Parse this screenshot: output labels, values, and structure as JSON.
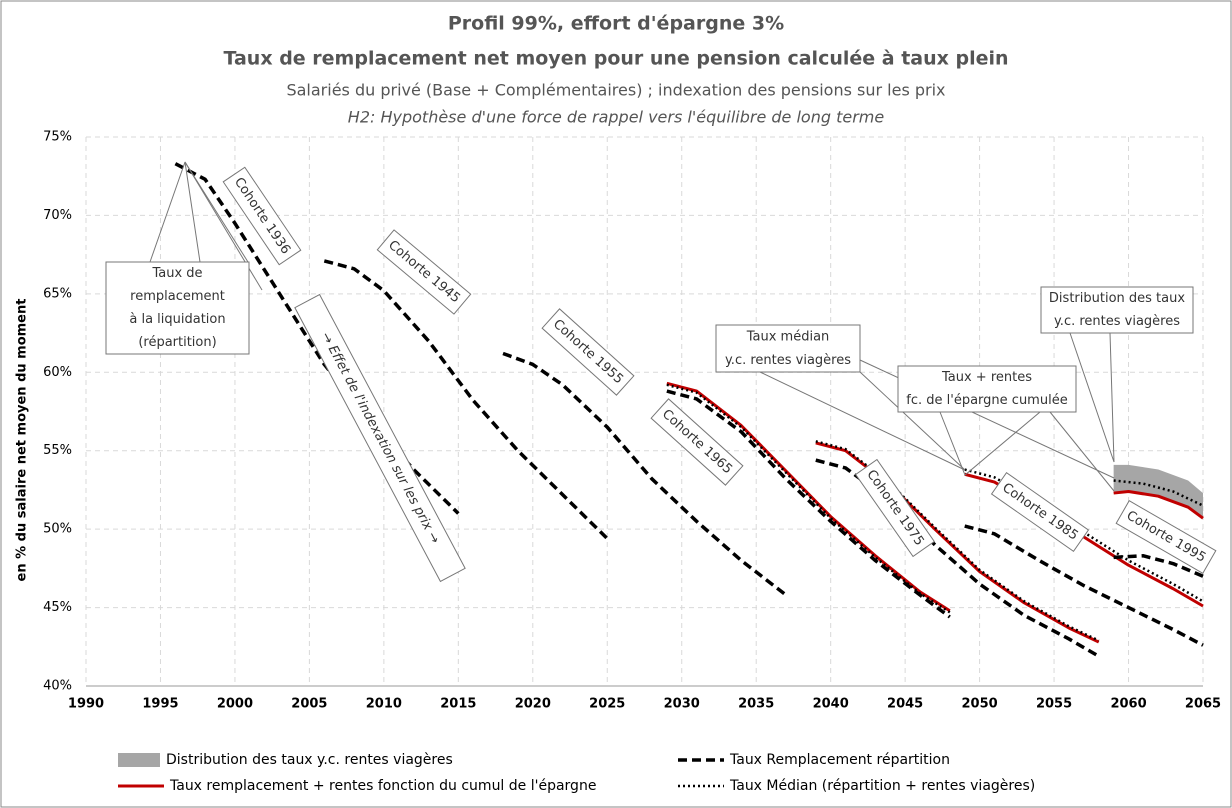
{
  "chart_data": {
    "type": "line",
    "title": "Profil 99%, effort d'épargne 3%",
    "subtitle": "Taux de remplacement net moyen pour une pension calculée à taux plein",
    "subtitle2": "Salariés du privé (Base + Complémentaires) ; indexation des pensions sur les prix",
    "hypothesis": "H2: Hypothèse d'une force de rappel vers l'équilibre de long terme",
    "y_label": "en % du salaire net moyen du moment",
    "xlim": [
      1990,
      2065
    ],
    "xticks": [
      1990,
      1995,
      2000,
      2005,
      2010,
      2015,
      2020,
      2025,
      2030,
      2035,
      2040,
      2045,
      2050,
      2055,
      2060,
      2065
    ],
    "ylim": [
      40,
      75
    ],
    "yticks": [
      {
        "value": 40,
        "label": "40%"
      },
      {
        "value": 45,
        "label": "45%"
      },
      {
        "value": 50,
        "label": "50%"
      },
      {
        "value": 55,
        "label": "55%"
      },
      {
        "value": 60,
        "label": "60%"
      },
      {
        "value": 65,
        "label": "65%"
      },
      {
        "value": 70,
        "label": "70%"
      },
      {
        "value": 75,
        "label": "75%"
      }
    ],
    "grid": true,
    "series": [
      {
        "name": "Distribution des taux y.c. rentes viagères",
        "color": "#a6a6a6",
        "style": "band",
        "segments": [
          {
            "x": [
              2059,
              2060,
              2062,
              2064,
              2065
            ],
            "values": [
              54.1,
              54.1,
              53.8,
              53.1,
              52.3
            ],
            "lower": [
              52.3,
              52.4,
              52.1,
              51.4,
              50.7
            ]
          }
        ]
      },
      {
        "name": "Taux Remplacement répartition",
        "color": "#000000",
        "style": "dashed",
        "segments": [
          {
            "x": [
              1996,
              1998,
              2000,
              2003,
              2006,
              2009,
              2012,
              2015
            ],
            "values": [
              73.3,
              72.3,
              69.5,
              65.0,
              60.5,
              57.0,
              53.8,
              51.0
            ]
          },
          {
            "x": [
              2006,
              2008,
              2010,
              2013,
              2016,
              2019,
              2022,
              2025
            ],
            "values": [
              67.1,
              66.6,
              65.2,
              62.0,
              58.2,
              55.0,
              52.2,
              49.4
            ]
          },
          {
            "x": [
              2018,
              2020,
              2022,
              2025,
              2028,
              2031,
              2034,
              2037
            ],
            "values": [
              61.2,
              60.5,
              59.2,
              56.5,
              53.2,
              50.5,
              48.0,
              45.8
            ]
          },
          {
            "x": [
              2029,
              2031,
              2034,
              2037,
              2040,
              2043,
              2046,
              2048
            ],
            "values": [
              58.8,
              58.3,
              56.2,
              53.2,
              50.5,
              48.0,
              45.8,
              44.4
            ]
          },
          {
            "x": [
              2039,
              2041,
              2044,
              2047,
              2050,
              2053,
              2056,
              2058
            ],
            "values": [
              54.4,
              53.9,
              51.8,
              49.0,
              46.5,
              44.5,
              43.0,
              41.9
            ]
          },
          {
            "x": [
              2049,
              2051,
              2054,
              2057,
              2060,
              2063,
              2065
            ],
            "values": [
              50.2,
              49.7,
              48.0,
              46.4,
              45.0,
              43.6,
              42.6
            ]
          },
          {
            "x": [
              2059,
              2061,
              2063,
              2065
            ],
            "values": [
              48.2,
              48.3,
              47.8,
              47.0
            ]
          }
        ]
      },
      {
        "name": "Taux remplacement + rentes fonction du cumul de l'épargne",
        "color": "#c00000",
        "style": "solid",
        "segments": [
          {
            "x": [
              2029,
              2031,
              2034,
              2037,
              2040,
              2043,
              2046,
              2048
            ],
            "values": [
              59.3,
              58.8,
              56.6,
              53.7,
              50.8,
              48.3,
              46.0,
              44.8
            ]
          },
          {
            "x": [
              2039,
              2041,
              2044,
              2047,
              2050,
              2053,
              2056,
              2058
            ],
            "values": [
              55.5,
              55.0,
              52.8,
              50.0,
              47.3,
              45.3,
              43.7,
              42.8
            ]
          },
          {
            "x": [
              2049,
              2051,
              2054,
              2057,
              2060,
              2063,
              2065
            ],
            "values": [
              53.5,
              53.0,
              51.3,
              49.5,
              47.7,
              46.2,
              45.1
            ]
          },
          {
            "x": [
              2059,
              2060,
              2062,
              2064,
              2065
            ],
            "values": [
              52.3,
              52.4,
              52.1,
              51.4,
              50.7
            ]
          }
        ]
      },
      {
        "name": "Taux Médian (répartition + rentes viagères)",
        "color": "#000000",
        "style": "dotted",
        "segments": [
          {
            "x": [
              2029,
              2031,
              2034,
              2037,
              2040,
              2043,
              2046,
              2048
            ],
            "values": [
              59.2,
              58.7,
              56.5,
              53.6,
              50.7,
              48.2,
              45.9,
              44.7
            ]
          },
          {
            "x": [
              2039,
              2041,
              2044,
              2047,
              2050,
              2053,
              2056,
              2058
            ],
            "values": [
              55.6,
              55.1,
              52.9,
              50.1,
              47.4,
              45.4,
              43.8,
              42.9
            ]
          },
          {
            "x": [
              2049,
              2051,
              2054,
              2057,
              2060,
              2063,
              2065
            ],
            "values": [
              53.8,
              53.3,
              51.7,
              49.8,
              48.0,
              46.5,
              45.4
            ]
          },
          {
            "x": [
              2059,
              2061,
              2063,
              2065
            ],
            "values": [
              53.1,
              52.9,
              52.4,
              51.5
            ]
          }
        ]
      }
    ],
    "callouts": [
      [
        "Taux de",
        "remplacement",
        "à la liquidation",
        "(répartition)"
      ],
      [
        "Taux médian",
        "y.c. rentes viagères"
      ],
      [
        "Taux + rentes",
        "fc. de l'épargne cumulée"
      ],
      [
        "Distribution des taux",
        "y.c. rentes viagères"
      ]
    ],
    "cohorts": [
      "Cohorte 1936",
      "Cohorte 1945",
      "Cohorte 1955",
      "Cohorte 1965",
      "Cohorte 1975",
      "Cohorte 1985",
      "Cohorte 1995"
    ],
    "indexation_note": "→ Effet de l'indexation sur les prix →"
  }
}
